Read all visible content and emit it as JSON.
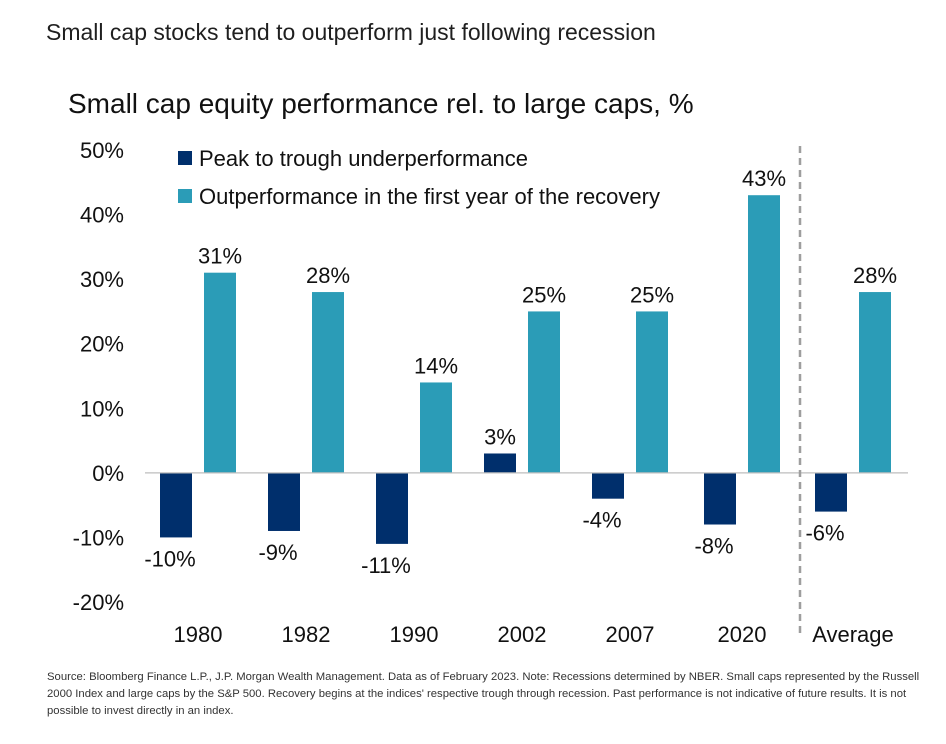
{
  "headline": "Small cap stocks tend to outperform just following recession",
  "footnote": "Source: Bloomberg Finance L.P., J.P. Morgan Wealth Management. Data as of February 2023. Note: Recessions determined by NBER. Small caps represented by the Russell 2000 Index and large caps by the S&P 500. Recovery begins at the indices' respective trough through recession. Past performance is not indicative of future results. It is not possible to invest directly in an index.",
  "colors": {
    "peak_to_trough": "#002f6c",
    "recovery": "#2b9cb7",
    "divider": "#9e9e9e",
    "axis": "#bdbdbd"
  },
  "chart_data": {
    "type": "bar",
    "title": "Small cap equity performance rel. to large caps, %",
    "categories": [
      "1980",
      "1982",
      "1990",
      "2002",
      "2007",
      "2020",
      "Average"
    ],
    "series": [
      {
        "name": "Peak to trough underperformance",
        "values": [
          -10,
          -9,
          -11,
          3,
          -4,
          -8,
          -6
        ],
        "labels": [
          "-10%",
          "-9%",
          "-11%",
          "3%",
          "-4%",
          "-8%",
          "-6%"
        ]
      },
      {
        "name": "Outperformance in the first year of the recovery",
        "values": [
          31,
          28,
          14,
          25,
          25,
          43,
          28
        ],
        "labels": [
          "31%",
          "28%",
          "14%",
          "25%",
          "25%",
          "43%",
          "28%"
        ]
      }
    ],
    "ylim": [
      -20,
      50
    ],
    "yticks": [
      -20,
      -10,
      0,
      10,
      20,
      30,
      40,
      50
    ],
    "ytick_labels": [
      "-20%",
      "-10%",
      "0%",
      "10%",
      "20%",
      "30%",
      "40%",
      "50%"
    ],
    "legend": "top-left",
    "grid": false,
    "divider_before": "Average"
  }
}
